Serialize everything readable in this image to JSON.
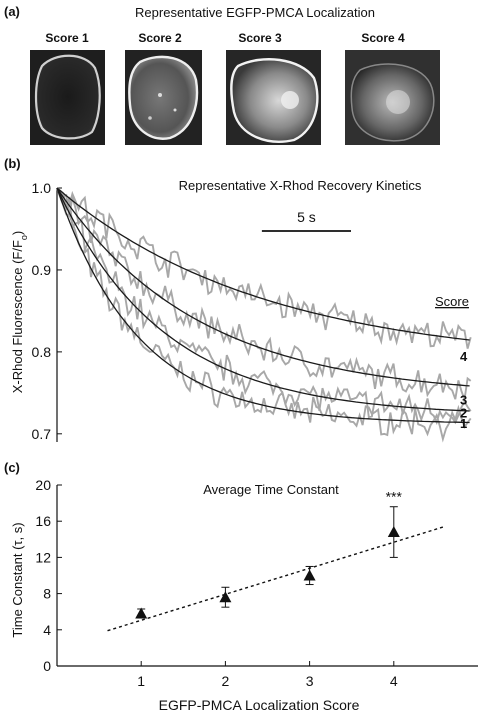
{
  "panel_a": {
    "label": "(a)",
    "title": "Representative EGFP-PMCA Localization",
    "images": [
      {
        "label": "Score 1"
      },
      {
        "label": "Score 2"
      },
      {
        "label": "Score 3"
      },
      {
        "label": "Score 4"
      }
    ]
  },
  "chart_data": [
    {
      "panel": "(b)",
      "type": "line",
      "title": "Representative X-Rhod Recovery Kinetics",
      "xlabel": "",
      "ylabel": "X-Rhod Fluorescence (F/Fo)",
      "ylabel_main": "X-Rhod Fluorescence (F/F",
      "ylabel_sub": "o",
      "ylabel_end": ")",
      "ylim": [
        0.69,
        1.0
      ],
      "xlim": [
        0,
        30
      ],
      "yticks": [
        0.7,
        0.8,
        0.9,
        1.0
      ],
      "yticklabels": [
        "0.7",
        "0.8",
        "0.9",
        "1.0"
      ],
      "scale_bar": "5 s",
      "scale_bar_seconds": 5,
      "legend_title": "Score",
      "series": [
        {
          "name": "1",
          "plateau": 0.712,
          "tau": 5.8
        },
        {
          "name": "2",
          "plateau": 0.722,
          "tau": 7.6
        },
        {
          "name": "3",
          "plateau": 0.745,
          "tau": 10.0
        },
        {
          "name": "4",
          "plateau": 0.785,
          "tau": 14.8
        }
      ],
      "grid": false
    },
    {
      "panel": "(c)",
      "type": "scatter",
      "title": "Average Time Constant",
      "xlabel": "EGFP-PMCA Localization Score",
      "ylabel": "Time Constant  (τ, s)",
      "x": [
        1,
        2,
        3,
        4
      ],
      "y": [
        5.8,
        7.6,
        10.0,
        14.8
      ],
      "yerr": [
        0.5,
        1.1,
        1.0,
        2.8
      ],
      "xticks": [
        1,
        2,
        3,
        4
      ],
      "yticks": [
        0,
        4,
        8,
        12,
        16,
        20
      ],
      "xlim": [
        0,
        5
      ],
      "ylim": [
        0,
        20
      ],
      "fit_line": {
        "x": [
          0.6,
          4.6
        ],
        "y": [
          3.9,
          15.4
        ],
        "style": "dashed"
      },
      "annotation": "***",
      "annotation_x": 4,
      "grid": false
    }
  ]
}
